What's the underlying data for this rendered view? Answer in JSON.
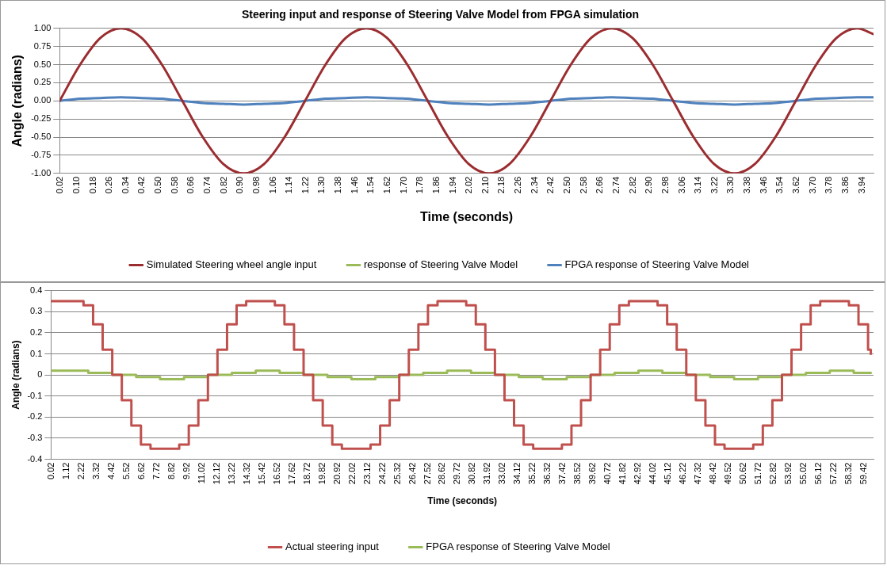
{
  "chart_data": [
    {
      "type": "line",
      "title": "Steering input and response of Steering Valve Model from FPGA simulation",
      "xlabel": "Time (seconds)",
      "ylabel": "Angle (radians)",
      "xlim": [
        0.02,
        4.0
      ],
      "ylim": [
        -1,
        1
      ],
      "xticks": [
        0.02,
        {
          "value": 0.1,
          "label": "0.10"
        },
        0.18,
        0.26,
        0.34,
        0.42,
        {
          "value": 0.5,
          "label": "0.50"
        },
        0.58,
        0.66,
        0.74,
        0.82,
        {
          "value": 0.9,
          "label": "0.90"
        },
        0.98,
        1.06,
        1.14,
        1.22,
        {
          "value": 1.3,
          "label": "1.30"
        },
        1.38,
        1.46,
        1.54,
        1.62,
        {
          "value": 1.7,
          "label": "1.70"
        },
        1.78,
        1.86,
        1.94,
        2.02,
        {
          "value": 2.1,
          "label": "2.10"
        },
        2.18,
        2.26,
        2.34,
        2.42,
        {
          "value": 2.5,
          "label": "2.50"
        },
        2.58,
        2.66,
        2.74,
        2.82,
        {
          "value": 2.9,
          "label": "2.90"
        },
        2.98,
        3.06,
        3.14,
        3.22,
        {
          "value": 3.3,
          "label": "3.30"
        },
        3.38,
        3.46,
        3.54,
        3.62,
        {
          "value": 3.7,
          "label": "3.70"
        },
        3.78,
        3.86,
        3.94
      ],
      "yticks": [
        {
          "value": 1,
          "label": "1.00"
        },
        0.75,
        {
          "value": 0.5,
          "label": "0.50"
        },
        0.25,
        {
          "value": 0,
          "label": "0.00"
        },
        -0.25,
        {
          "value": -0.5,
          "label": "-0.50"
        },
        -0.75,
        {
          "value": -1,
          "label": "-1.00"
        }
      ],
      "grid": "y",
      "legend": "bottom",
      "marker": "none",
      "line_style": "solid",
      "series": [
        {
          "name": "Simulated Steering wheel angle input",
          "color": "#9b2d30",
          "x": [
            0.02,
            0.12,
            0.22,
            0.32,
            0.42,
            0.52,
            0.62,
            0.72,
            0.82,
            0.92,
            1.02,
            1.12,
            1.22,
            1.32,
            1.42,
            1.52,
            1.62,
            1.72,
            1.82,
            1.92,
            2.02,
            2.12,
            2.22,
            2.32,
            2.42,
            2.52,
            2.62,
            2.72,
            2.82,
            2.92,
            3.02,
            3.12,
            3.22,
            3.32,
            3.42,
            3.52,
            3.62,
            3.72,
            3.82,
            3.92,
            4.0
          ],
          "values": [
            0,
            0.5,
            0.87,
            1,
            0.87,
            0.5,
            0,
            -0.5,
            -0.87,
            -1,
            -0.87,
            -0.5,
            0,
            0.5,
            0.87,
            1,
            0.87,
            0.5,
            0,
            -0.5,
            -0.87,
            -1,
            -0.87,
            -0.5,
            0,
            0.5,
            0.87,
            1,
            0.87,
            0.5,
            0,
            -0.5,
            -0.87,
            -1,
            -0.87,
            -0.5,
            0,
            0.5,
            0.87,
            1,
            0.92
          ]
        },
        {
          "name": "response of Steering Valve Model",
          "color": "#9bbb59"
        },
        {
          "name": "FPGA response of Steering Valve Model",
          "color": "#4f81bd",
          "x": [
            0.02,
            0.12,
            0.22,
            0.32,
            0.42,
            0.52,
            0.62,
            0.72,
            0.82,
            0.92,
            1.02,
            1.12,
            1.22,
            1.32,
            1.42,
            1.52,
            1.62,
            1.72,
            1.82,
            1.92,
            2.02,
            2.12,
            2.22,
            2.32,
            2.42,
            2.52,
            2.62,
            2.72,
            2.82,
            2.92,
            3.02,
            3.12,
            3.22,
            3.32,
            3.42,
            3.52,
            3.62,
            3.72,
            3.82,
            3.92,
            4.0
          ],
          "values": [
            0,
            0.03,
            0.04,
            0.05,
            0.04,
            0.03,
            0,
            -0.03,
            -0.04,
            -0.05,
            -0.04,
            -0.03,
            0,
            0.03,
            0.04,
            0.05,
            0.04,
            0.03,
            0,
            -0.03,
            -0.04,
            -0.05,
            -0.04,
            -0.03,
            0,
            0.03,
            0.04,
            0.05,
            0.04,
            0.03,
            0,
            -0.03,
            -0.04,
            -0.05,
            -0.04,
            -0.03,
            0,
            0.03,
            0.04,
            0.05,
            0.05
          ]
        }
      ]
    },
    {
      "type": "step",
      "xlabel": "Time (seconds)",
      "ylabel": "Angle (radians)",
      "xlim": [
        0.02,
        60.2
      ],
      "ylim": [
        -0.4,
        0.4
      ],
      "xticks": [
        0.02,
        1.12,
        2.22,
        3.32,
        4.42,
        5.52,
        6.62,
        7.72,
        8.82,
        9.92,
        11.02,
        12.12,
        13.22,
        14.32,
        15.42,
        16.52,
        17.62,
        18.72,
        19.82,
        20.92,
        22.02,
        23.12,
        24.22,
        25.32,
        26.42,
        27.52,
        28.62,
        29.72,
        30.82,
        31.92,
        33.02,
        34.12,
        35.22,
        36.32,
        37.42,
        38.52,
        39.62,
        40.72,
        41.82,
        42.92,
        44.02,
        45.12,
        46.22,
        47.32,
        48.42,
        49.52,
        50.62,
        51.72,
        52.82,
        53.92,
        55.02,
        56.12,
        57.22,
        58.32,
        59.42
      ],
      "yticks": [
        0.4,
        0.3,
        0.2,
        0.1,
        0,
        -0.1,
        -0.2,
        -0.3,
        -0.4
      ],
      "grid": "y",
      "legend": "bottom",
      "marker": "none",
      "line_style": "solid",
      "series": [
        {
          "name": "Actual steering input",
          "color": "#c0504d",
          "x": [
            0.02,
            0.3,
            1.0,
            1.7,
            2.4,
            3.1,
            3.8,
            4.5,
            5.2,
            5.9,
            6.6,
            7.3,
            8.0,
            8.7,
            9.4,
            10.1,
            10.8,
            11.5,
            12.2,
            12.9,
            13.6,
            14.3,
            15.0,
            15.7,
            16.4,
            17.1,
            17.8,
            18.5,
            19.2,
            19.9,
            20.6,
            21.3,
            22.0,
            22.7,
            23.4,
            24.1,
            24.8,
            25.5,
            26.2,
            26.9,
            27.6,
            28.3,
            29.0,
            29.7,
            30.4,
            31.1,
            31.8,
            32.5,
            33.2,
            33.9,
            34.6,
            35.3,
            36.0,
            36.7,
            37.4,
            38.1,
            38.8,
            39.5,
            40.2,
            40.9,
            41.6,
            42.3,
            43.0,
            43.7,
            44.4,
            45.1,
            45.8,
            46.5,
            47.2,
            47.9,
            48.6,
            49.3,
            50.0,
            50.7,
            51.4,
            52.1,
            52.8,
            53.5,
            54.2,
            54.9,
            55.6,
            56.3,
            57.0,
            57.7,
            58.4,
            59.1,
            59.8,
            60.0
          ],
          "values": [
            0.35,
            0.35,
            0.35,
            0.35,
            0.33,
            0.24,
            0.12,
            0,
            -0.12,
            -0.24,
            -0.33,
            -0.35,
            -0.35,
            -0.35,
            -0.33,
            -0.24,
            -0.12,
            0,
            0.12,
            0.24,
            0.33,
            0.35,
            0.35,
            0.35,
            0.33,
            0.24,
            0.12,
            0,
            -0.12,
            -0.24,
            -0.33,
            -0.35,
            -0.35,
            -0.35,
            -0.33,
            -0.24,
            -0.12,
            0,
            0.12,
            0.24,
            0.33,
            0.35,
            0.35,
            0.35,
            0.33,
            0.24,
            0.12,
            0,
            -0.12,
            -0.24,
            -0.33,
            -0.35,
            -0.35,
            -0.35,
            -0.33,
            -0.24,
            -0.12,
            0,
            0.12,
            0.24,
            0.33,
            0.35,
            0.35,
            0.35,
            0.33,
            0.24,
            0.12,
            0,
            -0.12,
            -0.24,
            -0.33,
            -0.35,
            -0.35,
            -0.35,
            -0.33,
            -0.24,
            -0.12,
            0,
            0.12,
            0.24,
            0.33,
            0.35,
            0.35,
            0.35,
            0.33,
            0.24,
            0.12,
            0.1
          ]
        },
        {
          "name": "FPGA response of Steering Valve Model",
          "color": "#9bbb59",
          "x": [
            0.02,
            1.0,
            2.75,
            4.5,
            6.25,
            8.0,
            9.75,
            11.5,
            13.25,
            15.0,
            16.75,
            18.5,
            20.25,
            22.0,
            23.75,
            25.5,
            27.25,
            29.0,
            30.75,
            32.5,
            34.25,
            36.0,
            37.75,
            39.5,
            41.25,
            43.0,
            44.75,
            46.5,
            48.25,
            50.0,
            51.75,
            53.5,
            55.25,
            57.0,
            58.75,
            60.0
          ],
          "values": [
            0.02,
            0.02,
            0.01,
            0,
            -0.01,
            -0.02,
            -0.01,
            0,
            0.01,
            0.02,
            0.01,
            0,
            -0.01,
            -0.02,
            -0.01,
            0,
            0.01,
            0.02,
            0.01,
            0,
            -0.01,
            -0.02,
            -0.01,
            0,
            0.01,
            0.02,
            0.01,
            0,
            -0.01,
            -0.02,
            -0.01,
            0,
            0.01,
            0.02,
            0.01,
            0.01
          ]
        }
      ]
    }
  ]
}
